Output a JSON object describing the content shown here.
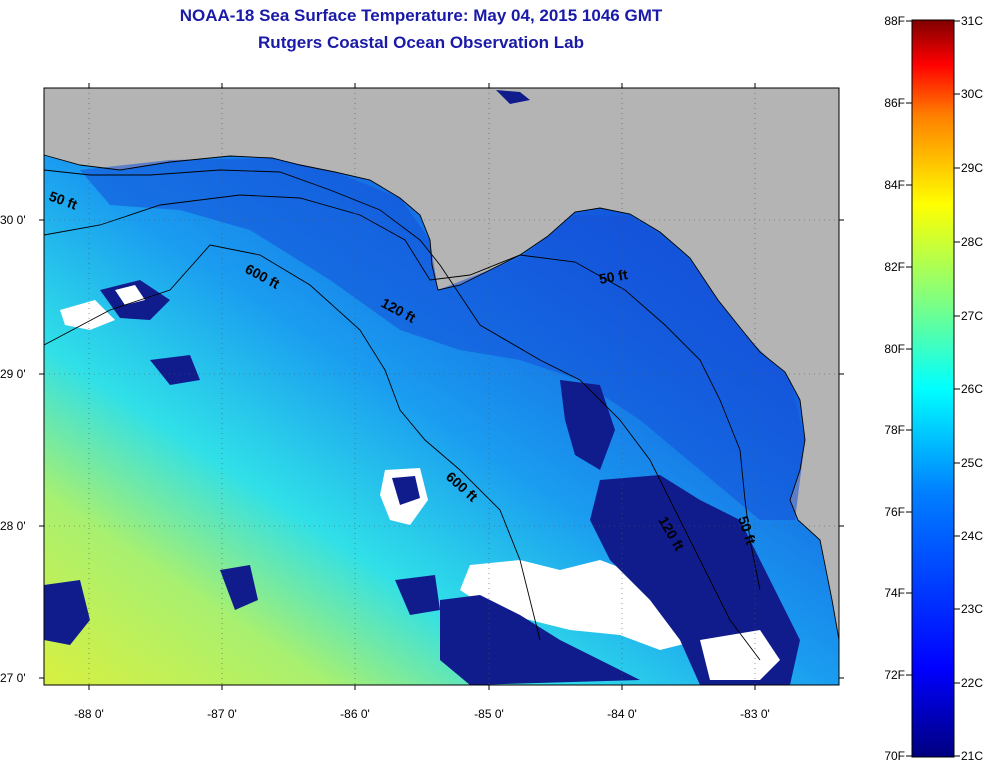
{
  "header": {
    "title": "NOAA-18 Sea Surface Temperature:  May 04, 2015 1046 GMT",
    "subtitle": "Rutgers Coastal Ocean Observation Lab"
  },
  "map": {
    "lat_labels": [
      "30 0'",
      "29 0'",
      "28 0'",
      "27 0'"
    ],
    "lon_labels": [
      "-88 0'",
      "-87 0'",
      "-86 0'",
      "-85 0'",
      "-84 0'",
      "-83 0'"
    ],
    "depth_labels": [
      "50 ft",
      "600 ft",
      "120 ft",
      "50 ft",
      "600 ft",
      "120 ft",
      "50 ft"
    ]
  },
  "colorbar": {
    "fahrenheit": [
      "88F",
      "86F",
      "84F",
      "82F",
      "80F",
      "78F",
      "76F",
      "74F",
      "72F",
      "70F"
    ],
    "celsius": [
      "31C",
      "30C",
      "29C",
      "28C",
      "27C",
      "26C",
      "25C",
      "24C",
      "23C",
      "22C",
      "21C"
    ],
    "colors": [
      "#7f0000",
      "#ff0000",
      "#ff8000",
      "#ffff00",
      "#80ff80",
      "#00ffff",
      "#0080ff",
      "#0000ff",
      "#00007f"
    ]
  }
}
